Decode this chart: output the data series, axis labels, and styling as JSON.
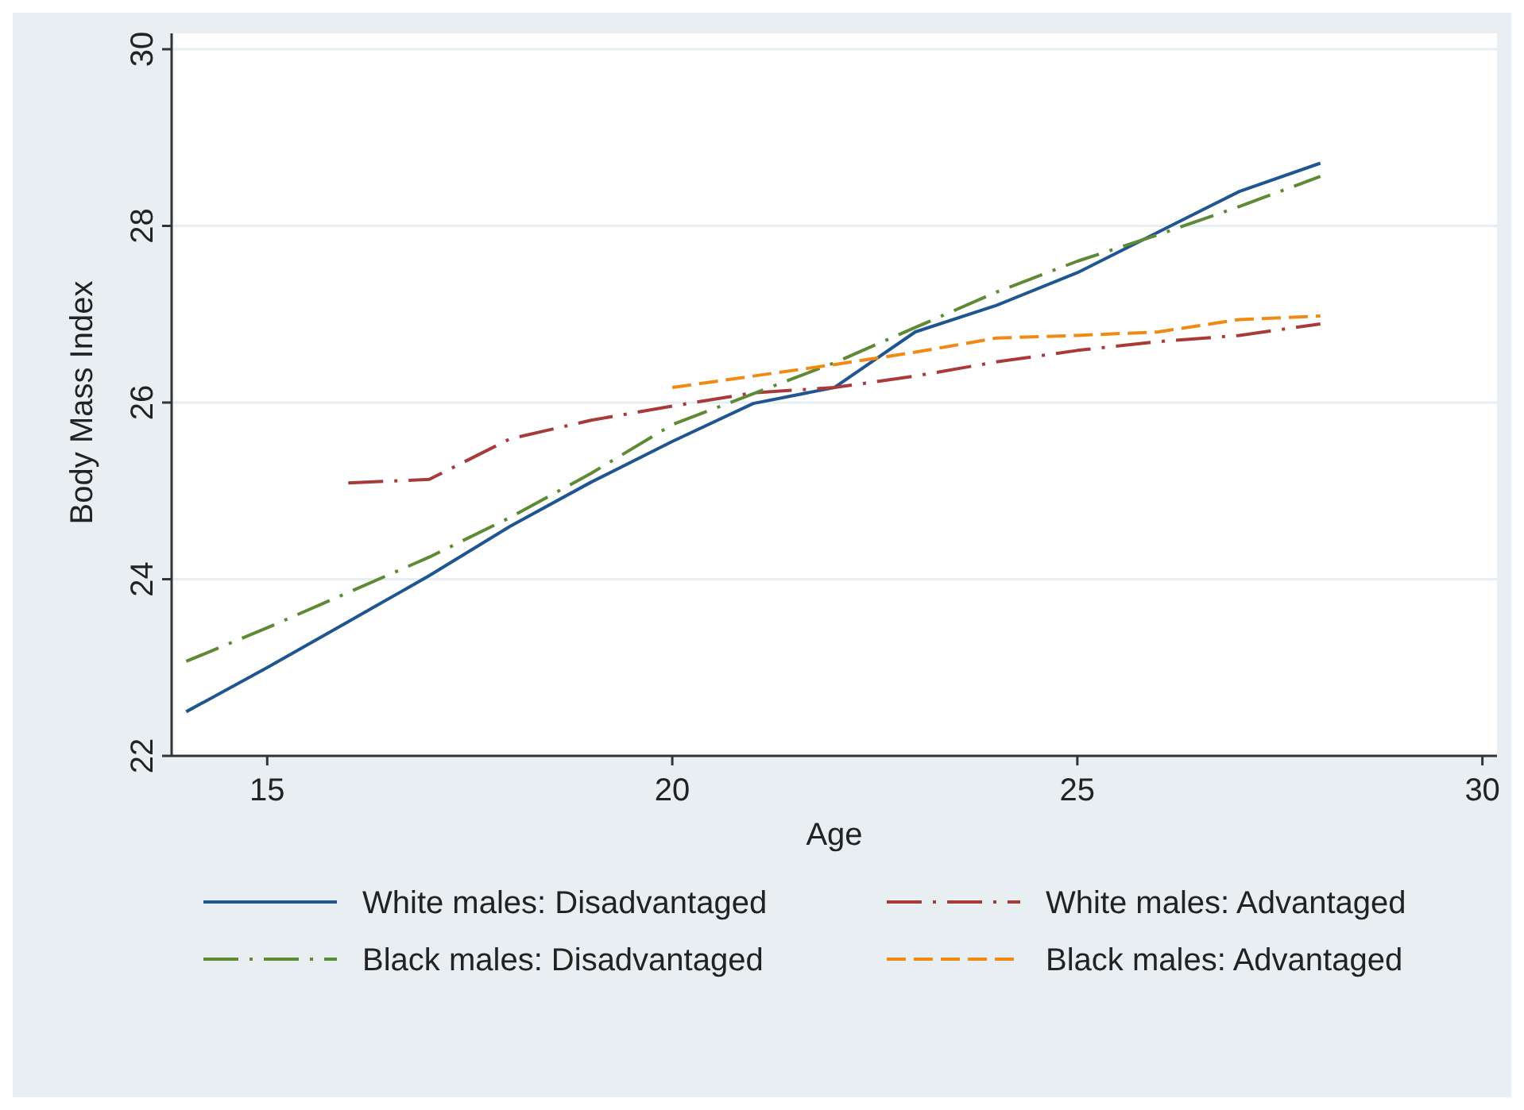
{
  "chart_data": {
    "type": "line",
    "xlabel": "Age",
    "ylabel": "Body Mass Index",
    "xlim": [
      13.82,
      30.18
    ],
    "xticks": [
      15,
      20,
      25,
      30
    ],
    "ylim": [
      22,
      30
    ],
    "yticks": [
      22,
      24,
      26,
      28,
      30
    ],
    "grid": "y",
    "legend": "bottom",
    "marker": "none",
    "series": [
      {
        "name": "White males: Disadvantaged",
        "color": "#1f5591",
        "line_style": "solid",
        "x": [
          14,
          15,
          16,
          17,
          18,
          19,
          20,
          21,
          22,
          23,
          24,
          25,
          26,
          27,
          28
        ],
        "values": [
          22.5,
          23.0,
          23.52,
          24.04,
          24.6,
          25.1,
          25.56,
          25.99,
          26.17,
          26.8,
          27.1,
          27.47,
          27.93,
          28.39,
          28.71
        ]
      },
      {
        "name": "White males: Advantaged",
        "color": "#a83a3a",
        "line_style": "dashdot",
        "x": [
          16,
          17,
          18,
          19,
          20,
          21,
          22,
          23,
          24,
          25,
          26,
          27,
          28
        ],
        "values": [
          25.09,
          25.13,
          25.59,
          25.8,
          25.96,
          26.11,
          26.17,
          26.3,
          26.46,
          26.59,
          26.69,
          26.76,
          26.89
        ]
      },
      {
        "name": "Black males: Disadvantaged",
        "color": "#5f8a35",
        "line_style": "dashdot",
        "x": [
          14,
          15,
          16,
          17,
          18,
          19,
          20,
          21,
          22,
          23,
          24,
          25,
          26,
          27,
          28
        ],
        "values": [
          23.07,
          23.45,
          23.85,
          24.25,
          24.7,
          25.2,
          25.75,
          26.1,
          26.45,
          26.85,
          27.25,
          27.6,
          27.9,
          28.22,
          28.56
        ]
      },
      {
        "name": "Black males: Advantaged",
        "color": "#f08a12",
        "line_style": "dashed",
        "x": [
          20,
          21,
          22,
          23,
          24,
          25,
          26,
          27,
          28
        ],
        "values": [
          26.17,
          26.3,
          26.43,
          26.57,
          26.73,
          26.76,
          26.8,
          26.94,
          26.98
        ]
      }
    ]
  }
}
